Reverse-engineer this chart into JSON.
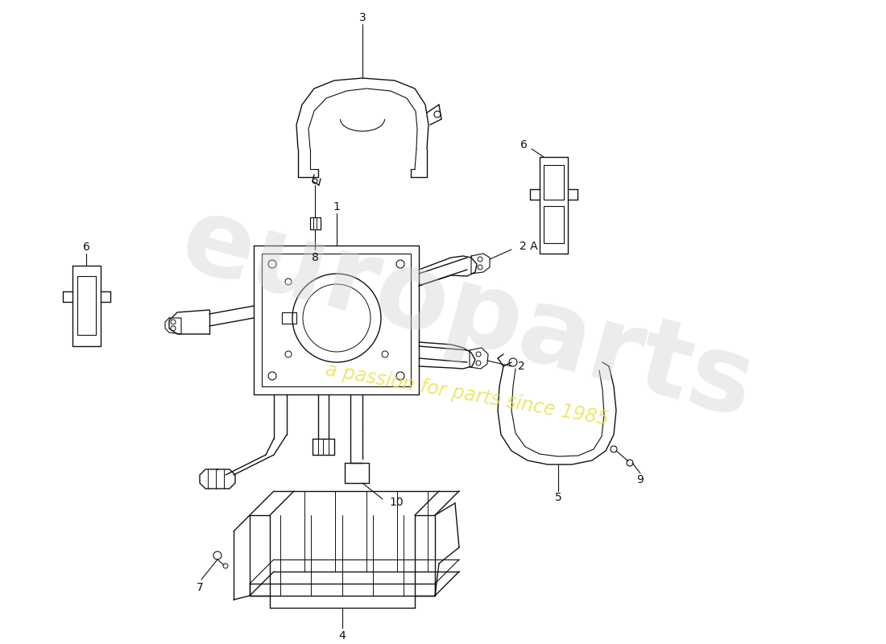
{
  "background_color": "#ffffff",
  "line_color": "#111111",
  "watermark_text1": "europarts",
  "watermark_text2": "a passion for parts since 1985",
  "watermark_color1": "#d0d0d0",
  "watermark_color2": "#e8e040",
  "fig_width": 11.0,
  "fig_height": 8.0,
  "dpi": 100
}
